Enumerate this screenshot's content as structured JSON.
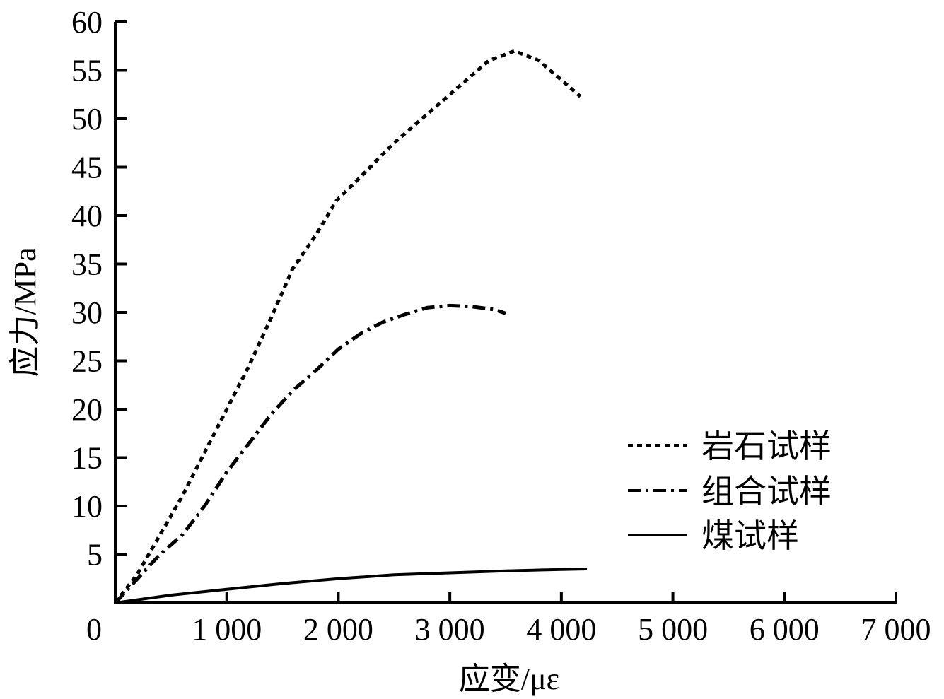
{
  "chart_data": {
    "type": "line",
    "title": "",
    "xlabel": "应变/με",
    "ylabel": "应力/MPa",
    "xlim": [
      0,
      7000
    ],
    "ylim": [
      0,
      60
    ],
    "x_ticks": [
      0,
      1000,
      2000,
      3000,
      4000,
      5000,
      6000,
      7000
    ],
    "x_tick_labels": [
      "0",
      "1 000",
      "2 000",
      "3 000",
      "4 000",
      "5 000",
      "6 000",
      "7 000"
    ],
    "y_ticks": [
      5,
      10,
      15,
      20,
      25,
      30,
      35,
      40,
      45,
      50,
      55,
      60
    ],
    "y_tick_labels": [
      "5",
      "10",
      "15",
      "20",
      "25",
      "30",
      "35",
      "40",
      "45",
      "50",
      "55",
      "60"
    ],
    "grid": false,
    "legend_position": "lower right (inside plot)",
    "series": [
      {
        "name": "岩石试样",
        "style": "dotted",
        "color": "#000000",
        "x": [
          0,
          200,
          400,
          600,
          800,
          1000,
          1200,
          1400,
          1590,
          1800,
          1980,
          2200,
          2500,
          2800,
          3100,
          3350,
          3580,
          3800,
          4000,
          4170
        ],
        "y": [
          0,
          3,
          7,
          11,
          15.5,
          20,
          24.5,
          29.5,
          34.5,
          38,
          41.5,
          44,
          47.5,
          50.5,
          53.5,
          56,
          57,
          56,
          54,
          52.3
        ]
      },
      {
        "name": "组合试样",
        "style": "dash-dot",
        "color": "#000000",
        "x": [
          0,
          200,
          400,
          600,
          800,
          1000,
          1200,
          1400,
          1600,
          1800,
          2000,
          2200,
          2400,
          2600,
          2800,
          3000,
          3200,
          3400,
          3500
        ],
        "y": [
          0,
          2.5,
          5,
          7,
          10,
          13.5,
          16.5,
          19.5,
          22,
          24,
          26.2,
          27.8,
          29,
          29.8,
          30.5,
          30.7,
          30.6,
          30.3,
          29.9
        ]
      },
      {
        "name": "煤试样",
        "style": "solid",
        "color": "#000000",
        "x": [
          0,
          500,
          1000,
          1500,
          2000,
          2500,
          3000,
          3500,
          4000,
          4230
        ],
        "y": [
          0,
          0.8,
          1.4,
          2.0,
          2.5,
          2.9,
          3.1,
          3.3,
          3.45,
          3.5
        ]
      }
    ]
  },
  "legend": {
    "items": [
      {
        "label": "岩石试样",
        "style": "dotted"
      },
      {
        "label": "组合试样",
        "style": "dash-dot"
      },
      {
        "label": "煤试样",
        "style": "solid"
      }
    ]
  },
  "axes": {
    "x_title": "应变/με",
    "y_title": "应力/MPa",
    "origin_label": "0"
  }
}
